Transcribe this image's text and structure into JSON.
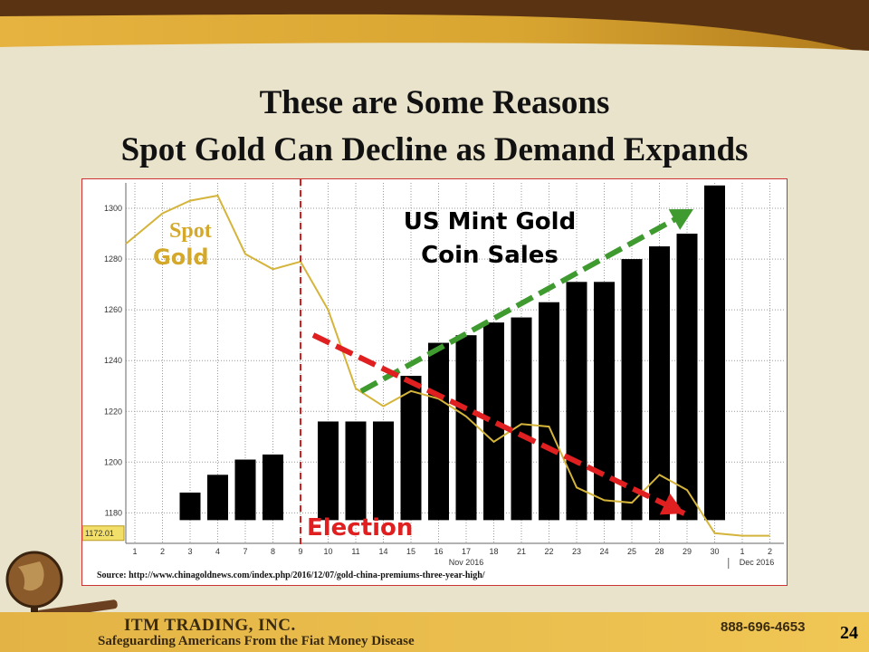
{
  "slide": {
    "title_line1": "These are Some Reasons",
    "title_line2": "Spot Gold Can Decline as Demand Expands",
    "page_number": "24"
  },
  "footer": {
    "company": "ITM TRADING, INC.",
    "tagline": "Safeguarding Americans From the Fiat Money Disease",
    "phone": "888-696-4653"
  },
  "colors": {
    "background": "#e9e3cc",
    "banner": "#d9a531",
    "gold_line": "#d4b43a",
    "bars": "#000000",
    "election_line": "#d62020",
    "green_arrow": "#3f9a2f",
    "red_arrow": "#e02020"
  },
  "chart_data": {
    "type": "bar",
    "categories": [
      "1",
      "2",
      "3",
      "4",
      "7",
      "8",
      "9",
      "10",
      "11",
      "14",
      "15",
      "16",
      "17",
      "18",
      "21",
      "22",
      "23",
      "24",
      "25",
      "28",
      "29",
      "30",
      "1",
      "2"
    ],
    "month_labels": [
      "Nov 2016",
      "Dec 2016"
    ],
    "yticks": [
      1180,
      1200,
      1220,
      1240,
      1260,
      1280,
      1300
    ],
    "ylim": [
      1168,
      1310
    ],
    "last_price_label": "1172.01",
    "series": [
      {
        "name": "US Mint Gold Coin Sales",
        "type": "bar",
        "values": [
          null,
          null,
          1188,
          1195,
          1201,
          1203,
          null,
          1216,
          1216,
          1216,
          1234,
          1247,
          1250,
          1255,
          1257,
          1263,
          1271,
          1271,
          1280,
          1285,
          1290,
          1309,
          null,
          null
        ]
      },
      {
        "name": "Spot Gold",
        "type": "line",
        "values": [
          1286,
          1298,
          1303,
          1305,
          1282,
          1276,
          1279,
          1260,
          1229,
          1222,
          1228,
          1225,
          1218,
          1208,
          1215,
          1214,
          1190,
          1185,
          1184,
          1195,
          1189,
          1172,
          1171,
          1171
        ]
      }
    ],
    "annotations": {
      "bar_label_line1": "US Mint Gold",
      "bar_label_line2": "Coin Sales",
      "spot_label": "Spot",
      "gold_label": "Gold",
      "election_label": "Election"
    },
    "event_index": 6,
    "source": "Source: http://www.chinagoldnews.com/index.php/2016/12/07/gold-china-premiums-three-year-high/"
  }
}
